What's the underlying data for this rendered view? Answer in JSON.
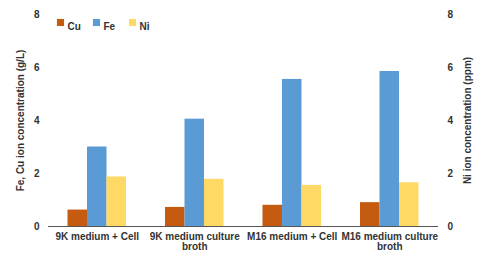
{
  "chart_data": {
    "type": "bar",
    "categories": [
      "9K medium + Cell",
      "9K medium culture broth",
      "M16 medium + Cell",
      "M16 medium culture broth"
    ],
    "series": [
      {
        "name": "Cu",
        "color": "#c55a11",
        "values": [
          0.62,
          0.72,
          0.8,
          0.9
        ]
      },
      {
        "name": "Fe",
        "color": "#5b9bd5",
        "values": [
          3.0,
          4.05,
          5.55,
          5.85
        ]
      },
      {
        "name": "Ni",
        "color": "#ffd966",
        "values": [
          1.87,
          1.78,
          1.55,
          1.65
        ],
        "axis": "y2"
      }
    ],
    "y_label": "Fe, Cu ion concentration (g/L)",
    "y2_label": "Ni ion concentration (ppm)",
    "ylim": [
      0,
      8
    ],
    "yticks": [
      0,
      2,
      4,
      6,
      8
    ],
    "y2lim": [
      0,
      8
    ],
    "y2ticks": [
      0,
      2,
      4,
      6,
      8
    ],
    "legend": "top-left",
    "grid": false
  }
}
